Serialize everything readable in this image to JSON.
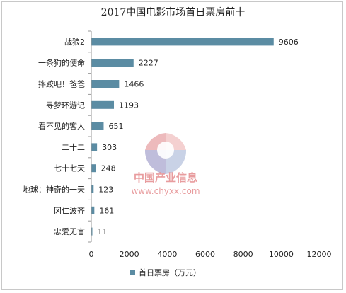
{
  "chart_data": {
    "type": "bar",
    "orientation": "horizontal",
    "title": "2017中国电影市场首日票房前十",
    "categories": [
      "战狼2",
      "一条狗的使命",
      "摔跤吧！爸爸",
      "寻梦环游记",
      "看不见的客人",
      "二十二",
      "七十七天",
      "地球：神奇的一天",
      "冈仁波齐",
      "忠爱无言"
    ],
    "series": [
      {
        "name": "首日票房（万元）",
        "values": [
          9606,
          2227,
          1466,
          1193,
          651,
          303,
          248,
          123,
          161,
          11
        ]
      }
    ],
    "xlim": [
      0,
      12000
    ],
    "xticks": [
      0,
      2000,
      4000,
      6000,
      8000,
      10000,
      12000
    ],
    "grid": false,
    "legend_position": "bottom",
    "colors": {
      "bar": "#5b8ca3",
      "axis": "#9a9a9a"
    }
  },
  "watermark": {
    "text": "中国产业信息",
    "url": "www.chyxx.com"
  }
}
